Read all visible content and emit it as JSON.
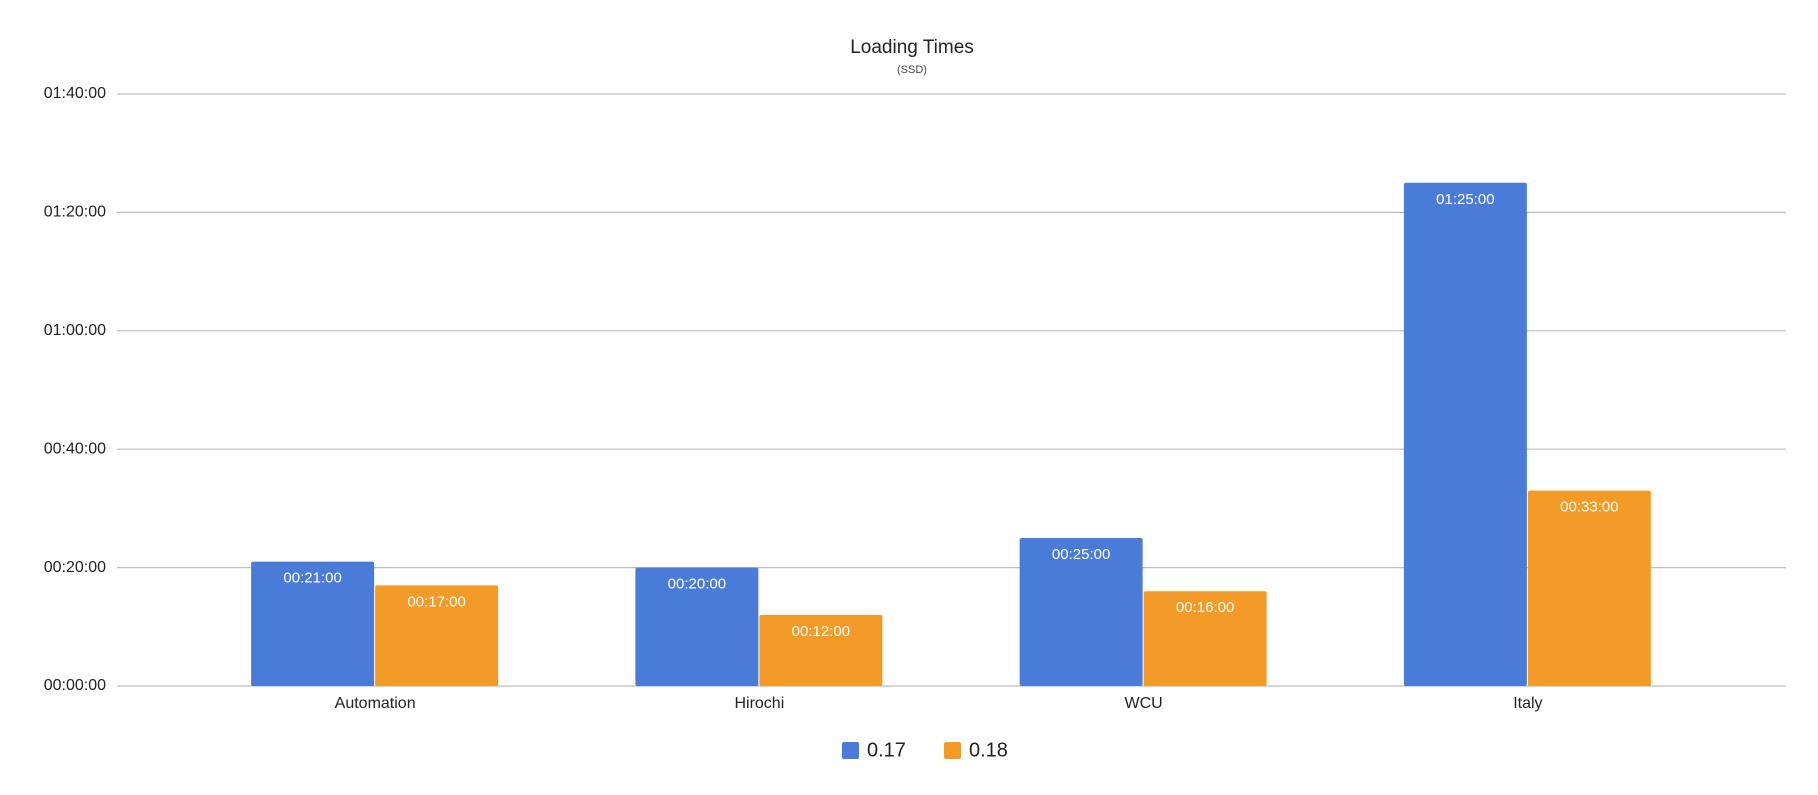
{
  "chart_data": {
    "type": "bar",
    "title": "Loading Times",
    "subtitle": "(SSD)",
    "categories": [
      "Automation",
      "Hirochi",
      "WCU",
      "Italy"
    ],
    "series": [
      {
        "name": "0.17",
        "color": "#4a7bd8",
        "values": [
          21,
          20,
          25,
          85
        ],
        "value_labels": [
          "00:21:00",
          "00:20:00",
          "00:25:00",
          "01:25:00"
        ]
      },
      {
        "name": "0.18",
        "color": "#f39a27",
        "values": [
          17,
          12,
          16,
          33
        ],
        "value_labels": [
          "00:17:00",
          "00:12:00",
          "00:16:00",
          "00:33:00"
        ]
      }
    ],
    "ylim": [
      0,
      100
    ],
    "yticks": [
      {
        "value": 0,
        "label": "00:00:00"
      },
      {
        "value": 20,
        "label": "00:20:00"
      },
      {
        "value": 40,
        "label": "00:40:00"
      },
      {
        "value": 60,
        "label": "01:00:00"
      },
      {
        "value": 80,
        "label": "01:20:00"
      },
      {
        "value": 100,
        "label": "01:40:00"
      }
    ],
    "grid": true,
    "legend": "bottom"
  }
}
